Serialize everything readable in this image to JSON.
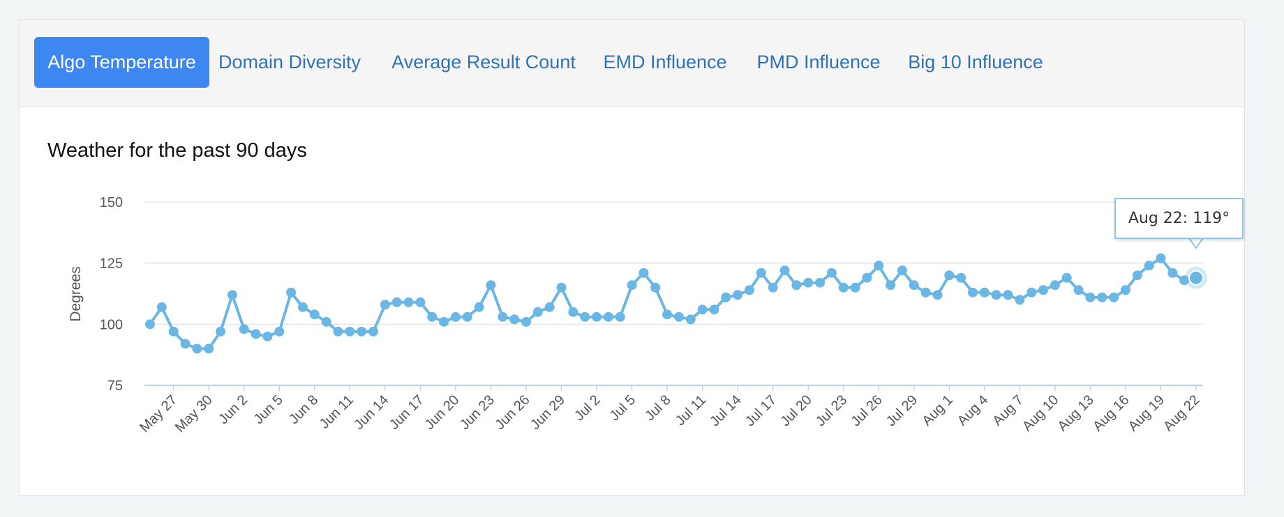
{
  "tabs": [
    {
      "label": "Algo Temperature",
      "active": true
    },
    {
      "label": "Domain Diversity",
      "active": false
    },
    {
      "label": "Average Result Count",
      "active": false
    },
    {
      "label": "EMD Influence",
      "active": false
    },
    {
      "label": "PMD Influence",
      "active": false
    },
    {
      "label": "Big 10 Influence",
      "active": false
    }
  ],
  "tooltip": {
    "text": "Aug 22: 119°"
  },
  "colors": {
    "accent": "#3c87f1",
    "line": "#6ab7e6",
    "tab_text": "#2f73b5"
  },
  "chart_data": {
    "type": "line",
    "title": "Weather for the past 90 days",
    "xlabel": "",
    "ylabel": "Degrees",
    "ylim": [
      75,
      150
    ],
    "yticks": [
      75,
      100,
      125,
      150
    ],
    "grid": true,
    "legend": "none",
    "x_tick_labels": [
      "May 27",
      "May 30",
      "Jun 2",
      "Jun 5",
      "Jun 8",
      "Jun 11",
      "Jun 14",
      "Jun 17",
      "Jun 20",
      "Jun 23",
      "Jun 26",
      "Jun 29",
      "Jul 2",
      "Jul 5",
      "Jul 8",
      "Jul 11",
      "Jul 14",
      "Jul 17",
      "Jul 20",
      "Jul 23",
      "Jul 26",
      "Jul 29",
      "Aug 1",
      "Aug 4",
      "Aug 7",
      "Aug 10",
      "Aug 13",
      "Aug 16",
      "Aug 19",
      "Aug 22"
    ],
    "x": [
      "May 25",
      "May 26",
      "May 27",
      "May 28",
      "May 29",
      "May 30",
      "May 31",
      "Jun 1",
      "Jun 2",
      "Jun 3",
      "Jun 4",
      "Jun 5",
      "Jun 6",
      "Jun 7",
      "Jun 8",
      "Jun 9",
      "Jun 10",
      "Jun 11",
      "Jun 12",
      "Jun 13",
      "Jun 14",
      "Jun 15",
      "Jun 16",
      "Jun 17",
      "Jun 18",
      "Jun 19",
      "Jun 20",
      "Jun 21",
      "Jun 22",
      "Jun 23",
      "Jun 24",
      "Jun 25",
      "Jun 26",
      "Jun 27",
      "Jun 28",
      "Jun 29",
      "Jun 30",
      "Jul 1",
      "Jul 2",
      "Jul 3",
      "Jul 4",
      "Jul 5",
      "Jul 6",
      "Jul 7",
      "Jul 8",
      "Jul 9",
      "Jul 10",
      "Jul 11",
      "Jul 12",
      "Jul 13",
      "Jul 14",
      "Jul 15",
      "Jul 16",
      "Jul 17",
      "Jul 18",
      "Jul 19",
      "Jul 20",
      "Jul 21",
      "Jul 22",
      "Jul 23",
      "Jul 24",
      "Jul 25",
      "Jul 26",
      "Jul 27",
      "Jul 28",
      "Jul 29",
      "Jul 30",
      "Jul 31",
      "Aug 1",
      "Aug 2",
      "Aug 3",
      "Aug 4",
      "Aug 5",
      "Aug 6",
      "Aug 7",
      "Aug 8",
      "Aug 9",
      "Aug 10",
      "Aug 11",
      "Aug 12",
      "Aug 13",
      "Aug 14",
      "Aug 15",
      "Aug 16",
      "Aug 17",
      "Aug 18",
      "Aug 19",
      "Aug 20",
      "Aug 21",
      "Aug 22"
    ],
    "values": [
      100,
      107,
      97,
      92,
      90,
      90,
      97,
      112,
      98,
      96,
      95,
      97,
      113,
      107,
      104,
      101,
      97,
      97,
      97,
      97,
      108,
      109,
      109,
      109,
      103,
      101,
      103,
      103,
      107,
      116,
      103,
      102,
      101,
      105,
      107,
      115,
      105,
      103,
      103,
      103,
      103,
      116,
      121,
      115,
      104,
      103,
      102,
      106,
      106,
      111,
      112,
      114,
      121,
      115,
      122,
      116,
      117,
      117,
      121,
      115,
      115,
      119,
      124,
      116,
      122,
      116,
      113,
      112,
      120,
      119,
      113,
      113,
      112,
      112,
      110,
      113,
      114,
      116,
      119,
      114,
      111,
      111,
      111,
      114,
      120,
      124,
      127,
      121,
      118,
      119
    ]
  }
}
